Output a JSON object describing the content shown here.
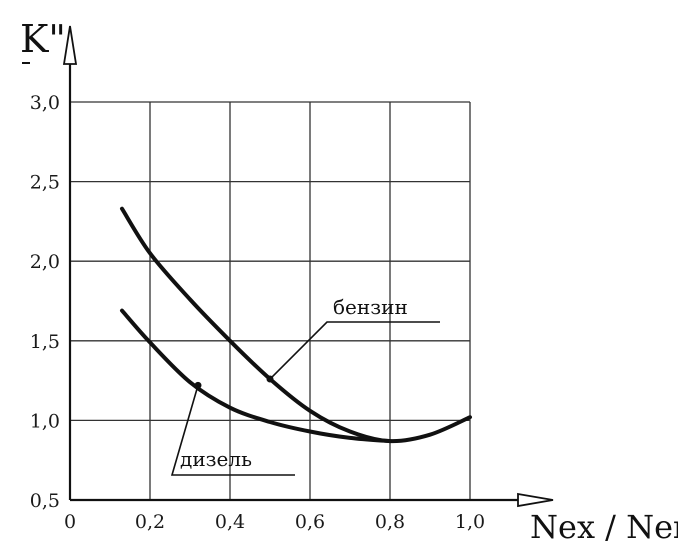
{
  "chart_data": {
    "type": "line",
    "ylabel": "K\"",
    "xlabel": "Nex / Neн",
    "xlim": [
      0,
      1.0
    ],
    "ylim": [
      0.5,
      3.0
    ],
    "x_ticks": [
      "0",
      "0,2",
      "0,4",
      "0,6",
      "0,8",
      "1,0"
    ],
    "y_ticks": [
      "0,5",
      "1,0",
      "1,5",
      "2,0",
      "2,5",
      "3,0"
    ],
    "grid": true,
    "series": [
      {
        "name": "бензин",
        "color": "#111111",
        "x": [
          0.13,
          0.2,
          0.3,
          0.4,
          0.5,
          0.6,
          0.7,
          0.8,
          0.9,
          1.0
        ],
        "y": [
          2.33,
          2.05,
          1.76,
          1.5,
          1.26,
          1.06,
          0.93,
          0.87,
          0.91,
          1.02
        ]
      },
      {
        "name": "дизель",
        "color": "#111111",
        "x": [
          0.13,
          0.2,
          0.3,
          0.4,
          0.5,
          0.6,
          0.7,
          0.8
        ],
        "y": [
          1.69,
          1.49,
          1.24,
          1.08,
          0.99,
          0.93,
          0.89,
          0.87
        ]
      }
    ]
  }
}
